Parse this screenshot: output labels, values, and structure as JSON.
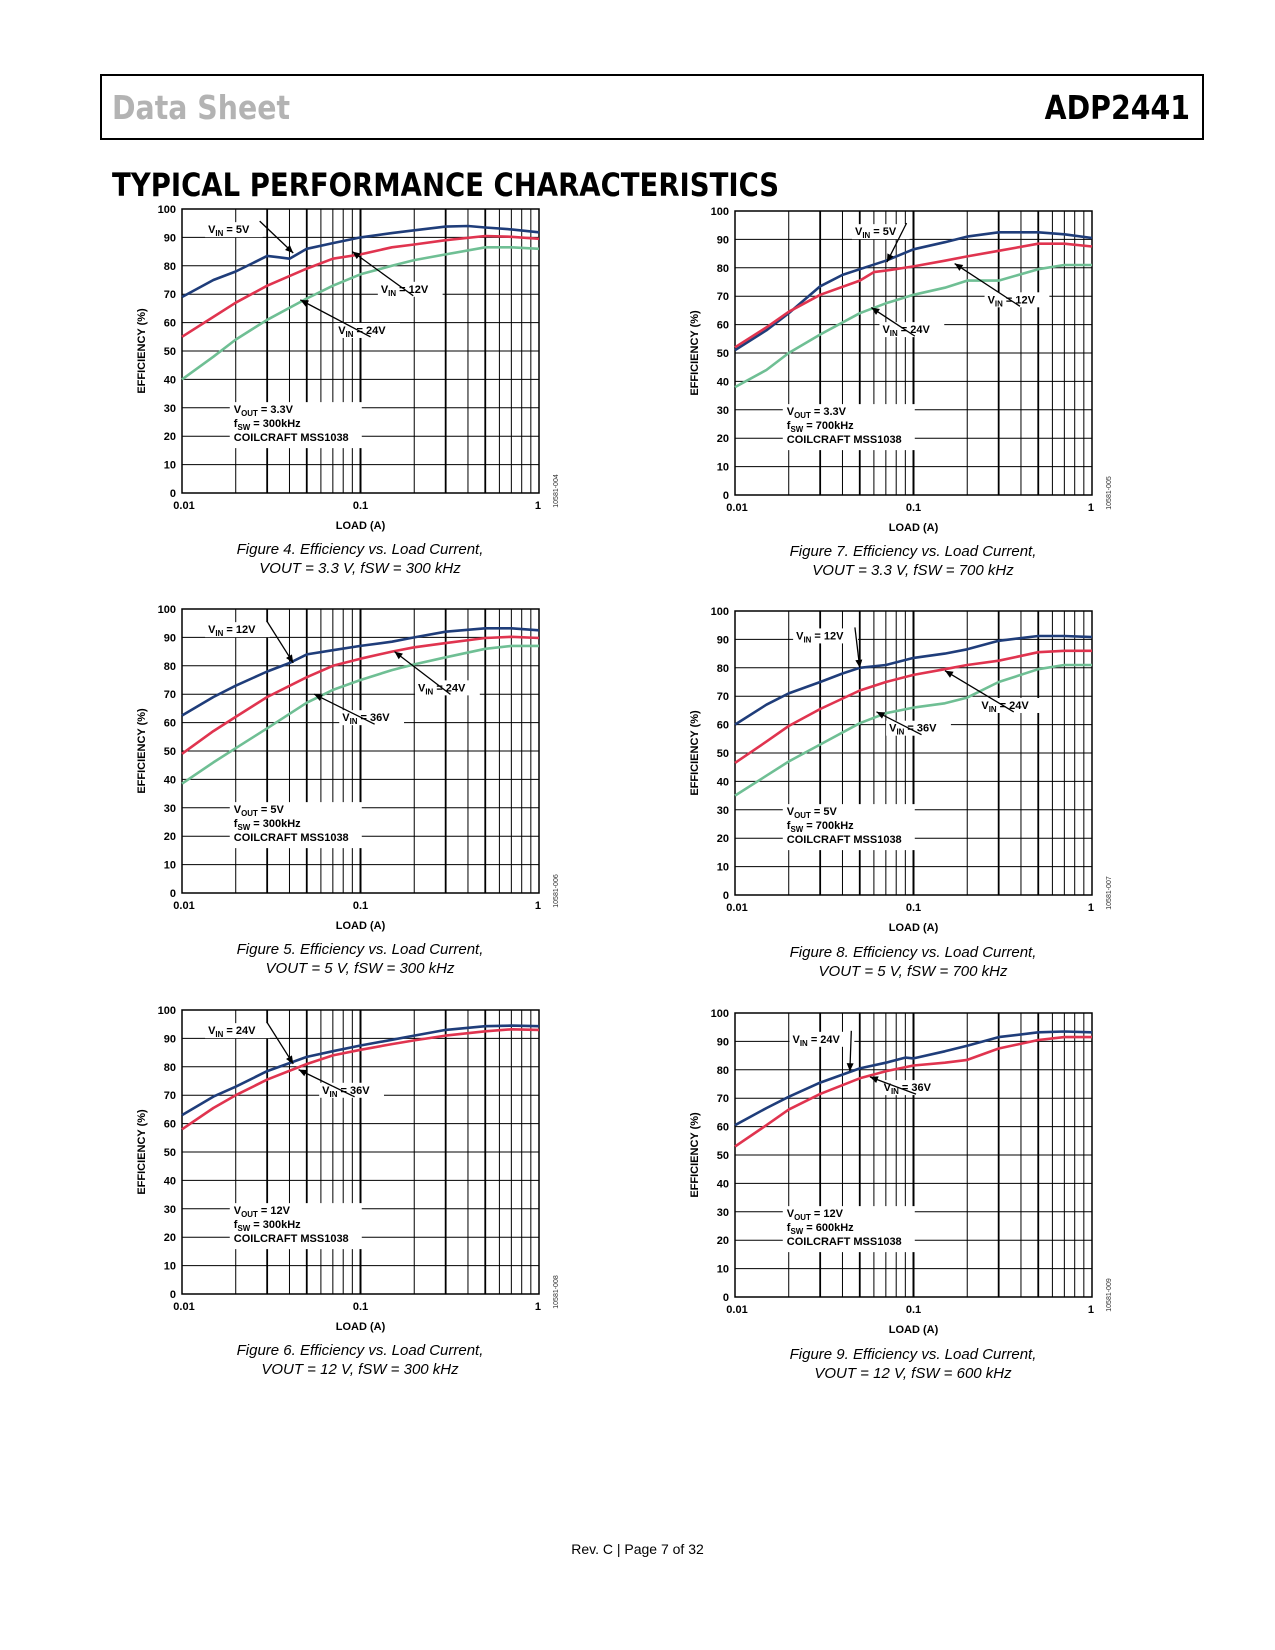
{
  "header": {
    "doc_title": "Data Sheet",
    "part_number": "ADP2441"
  },
  "section_title": "TYPICAL PERFORMANCE CHARACTERISTICS",
  "footer": "Rev. C | Page 7 of 32",
  "colors": {
    "navy": "#1f3d7a",
    "red": "#e0344f",
    "green": "#6fbf94",
    "grid": "#000000"
  },
  "charts": [
    {
      "figure_label": "Figure 4. Efficiency vs. Load Current,",
      "caption_line2": "VOUT = 3.3 V, fSW = 300 kHz",
      "code": "10581-004",
      "conditions": [
        "VOUT = 3.3V",
        "fSW = 300kHz",
        "COILCRAFT MSS1038"
      ],
      "labels": [
        "VIN = 5V",
        "VIN = 12V",
        "VIN = 24V"
      ]
    },
    {
      "figure_label": "Figure 5. Efficiency vs. Load Current,",
      "caption_line2": "VOUT = 5 V, fSW = 300 kHz",
      "code": "10581-006",
      "conditions": [
        "VOUT = 5V",
        "fSW = 300kHz",
        "COILCRAFT MSS1038"
      ],
      "labels": [
        "VIN = 12V",
        "VIN = 24V",
        "VIN = 36V"
      ]
    },
    {
      "figure_label": "Figure 6. Efficiency vs. Load Current,",
      "caption_line2": "VOUT = 12 V, fSW = 300 kHz",
      "code": "10581-008",
      "conditions": [
        "VOUT = 12V",
        "fSW = 300kHz",
        "COILCRAFT MSS1038"
      ],
      "labels": [
        "VIN = 24V",
        "VIN = 36V"
      ]
    },
    {
      "figure_label": "Figure 7. Efficiency vs. Load Current,",
      "caption_line2": "VOUT = 3.3 V, fSW = 700 kHz",
      "code": "10581-005",
      "conditions": [
        "VOUT = 3.3V",
        "fSW = 700kHz",
        "COILCRAFT MSS1038"
      ],
      "labels": [
        "VIN = 5V",
        "VIN = 12V",
        "VIN = 24V"
      ]
    },
    {
      "figure_label": "Figure 8. Efficiency vs. Load Current,",
      "caption_line2": "VOUT = 5 V, fSW = 700 kHz",
      "code": "10581-007",
      "conditions": [
        "VOUT = 5V",
        "fSW = 700kHz",
        "COILCRAFT MSS1038"
      ],
      "labels": [
        "VIN = 12V",
        "VIN = 24V",
        "VIN = 36V"
      ]
    },
    {
      "figure_label": "Figure 9. Efficiency vs. Load Current,",
      "caption_line2": "VOUT = 12 V, fSW = 600 kHz",
      "code": "10581-009",
      "conditions": [
        "VOUT = 12V",
        "fSW = 600kHz",
        "COILCRAFT MSS1038"
      ],
      "labels": [
        "VIN = 24V",
        "VIN = 36V"
      ]
    }
  ],
  "chart_data": [
    {
      "type": "line",
      "xscale": "log",
      "xlim": [
        0.01,
        1
      ],
      "ylim": [
        0,
        100
      ],
      "xlabel": "LOAD (A)",
      "ylabel": "EFFICIENCY (%)",
      "x_ticks": [
        "0.01",
        "0.1",
        "1"
      ],
      "y_ticks": [
        "0",
        "10",
        "20",
        "30",
        "40",
        "50",
        "60",
        "70",
        "80",
        "90",
        "100"
      ],
      "grid": true,
      "series": [
        {
          "name": "VIN = 5V",
          "color": "#1f3d7a",
          "x": [
            0.01,
            0.015,
            0.02,
            0.025,
            0.03,
            0.035,
            0.04,
            0.05,
            0.07,
            0.1,
            0.15,
            0.2,
            0.3,
            0.4,
            0.5,
            0.7,
            1
          ],
          "y": [
            69,
            75,
            78,
            81,
            83.5,
            83,
            82.5,
            86,
            88,
            90,
            91.5,
            92.5,
            93.8,
            94,
            93.5,
            92.8,
            91.8
          ]
        },
        {
          "name": "VIN = 12V",
          "color": "#e0344f",
          "x": [
            0.01,
            0.015,
            0.02,
            0.03,
            0.05,
            0.07,
            0.1,
            0.15,
            0.2,
            0.3,
            0.5,
            0.7,
            1
          ],
          "y": [
            55,
            62,
            67,
            73,
            79,
            82.5,
            84,
            86.5,
            87.5,
            89,
            90.5,
            90.2,
            89.5
          ]
        },
        {
          "name": "VIN = 24V",
          "color": "#6fbf94",
          "x": [
            0.01,
            0.015,
            0.02,
            0.03,
            0.05,
            0.07,
            0.1,
            0.15,
            0.2,
            0.3,
            0.5,
            0.7,
            1
          ],
          "y": [
            40,
            48,
            54,
            61,
            68.5,
            73,
            77,
            80,
            82,
            84,
            86.5,
            86.5,
            86
          ]
        }
      ],
      "annotations": [
        "VIN = 5V",
        "VIN = 12V",
        "VIN = 24V",
        "VOUT = 3.3V",
        "fSW = 300kHz",
        "COILCRAFT MSS1038"
      ]
    },
    {
      "type": "line",
      "xscale": "log",
      "xlim": [
        0.01,
        1
      ],
      "ylim": [
        0,
        100
      ],
      "xlabel": "LOAD (A)",
      "ylabel": "EFFICIENCY (%)",
      "x_ticks": [
        "0.01",
        "0.1",
        "1"
      ],
      "y_ticks": [
        "0",
        "10",
        "20",
        "30",
        "40",
        "50",
        "60",
        "70",
        "80",
        "90",
        "100"
      ],
      "grid": true,
      "series": [
        {
          "name": "VIN = 12V",
          "color": "#1f3d7a",
          "x": [
            0.01,
            0.015,
            0.02,
            0.03,
            0.04,
            0.05,
            0.07,
            0.1,
            0.15,
            0.2,
            0.3,
            0.5,
            0.7,
            1
          ],
          "y": [
            62.5,
            69,
            73,
            78,
            81,
            84,
            85.5,
            87,
            88.5,
            90,
            92,
            93.2,
            93.2,
            92.5
          ]
        },
        {
          "name": "VIN = 24V",
          "color": "#e0344f",
          "x": [
            0.01,
            0.015,
            0.02,
            0.03,
            0.05,
            0.07,
            0.1,
            0.15,
            0.2,
            0.3,
            0.5,
            0.7,
            1
          ],
          "y": [
            49,
            57,
            62,
            69,
            76,
            80,
            82.5,
            85,
            86.5,
            88,
            89.8,
            90.2,
            89.8
          ]
        },
        {
          "name": "VIN = 36V",
          "color": "#6fbf94",
          "x": [
            0.01,
            0.015,
            0.02,
            0.03,
            0.05,
            0.07,
            0.1,
            0.15,
            0.2,
            0.3,
            0.5,
            0.7,
            1
          ],
          "y": [
            38.5,
            46,
            51,
            58,
            67,
            71.5,
            75,
            78.5,
            80.5,
            83,
            86,
            87,
            87
          ]
        }
      ],
      "annotations": [
        "VIN = 12V",
        "VIN = 24V",
        "VIN = 36V",
        "VOUT = 5V",
        "fSW = 300kHz",
        "COILCRAFT MSS1038"
      ]
    },
    {
      "type": "line",
      "xscale": "log",
      "xlim": [
        0.01,
        1
      ],
      "ylim": [
        0,
        100
      ],
      "xlabel": "LOAD (A)",
      "ylabel": "EFFICIENCY (%)",
      "x_ticks": [
        "0.01",
        "0.1",
        "1"
      ],
      "y_ticks": [
        "0",
        "10",
        "20",
        "30",
        "40",
        "50",
        "60",
        "70",
        "80",
        "90",
        "100"
      ],
      "grid": true,
      "series": [
        {
          "name": "VIN = 24V",
          "color": "#1f3d7a",
          "x": [
            0.01,
            0.015,
            0.02,
            0.03,
            0.05,
            0.07,
            0.1,
            0.15,
            0.2,
            0.3,
            0.5,
            0.7,
            1
          ],
          "y": [
            63,
            69.5,
            73,
            78.5,
            83.5,
            85.5,
            87.5,
            89.5,
            91,
            93,
            94.3,
            94.5,
            94.3
          ]
        },
        {
          "name": "VIN = 36V",
          "color": "#e0344f",
          "x": [
            0.01,
            0.015,
            0.02,
            0.03,
            0.05,
            0.07,
            0.1,
            0.15,
            0.2,
            0.3,
            0.5,
            0.7,
            1
          ],
          "y": [
            58,
            65.5,
            70,
            75.5,
            81,
            84,
            86,
            88,
            89.3,
            91,
            92.5,
            93.2,
            93
          ]
        }
      ],
      "annotations": [
        "VIN = 24V",
        "VIN = 36V",
        "VOUT = 12V",
        "fSW = 300kHz",
        "COILCRAFT MSS1038"
      ]
    },
    {
      "type": "line",
      "xscale": "log",
      "xlim": [
        0.01,
        1
      ],
      "ylim": [
        0,
        100
      ],
      "xlabel": "LOAD (A)",
      "ylabel": "EFFICIENCY (%)",
      "x_ticks": [
        "0.01",
        "0.1",
        "1"
      ],
      "y_ticks": [
        "0",
        "10",
        "20",
        "30",
        "40",
        "50",
        "60",
        "70",
        "80",
        "90",
        "100"
      ],
      "grid": true,
      "series": [
        {
          "name": "VIN = 5V",
          "color": "#1f3d7a",
          "x": [
            0.01,
            0.015,
            0.02,
            0.03,
            0.04,
            0.05,
            0.07,
            0.1,
            0.15,
            0.2,
            0.3,
            0.5,
            0.7,
            1
          ],
          "y": [
            51,
            58,
            64,
            73.5,
            77.5,
            79.5,
            82.5,
            86.5,
            89,
            91,
            92.5,
            92.5,
            91.8,
            90.5
          ]
        },
        {
          "name": "VIN = 12V",
          "color": "#e0344f",
          "x": [
            0.01,
            0.015,
            0.02,
            0.03,
            0.05,
            0.06,
            0.07,
            0.1,
            0.15,
            0.2,
            0.3,
            0.5,
            0.7,
            1
          ],
          "y": [
            52,
            59,
            64.5,
            70.5,
            75.5,
            78.5,
            79,
            80.5,
            82.5,
            84,
            86,
            88.5,
            88.5,
            87.5
          ]
        },
        {
          "name": "VIN = 24V",
          "color": "#6fbf94",
          "x": [
            0.01,
            0.015,
            0.02,
            0.03,
            0.05,
            0.07,
            0.1,
            0.15,
            0.2,
            0.3,
            0.5,
            0.7,
            1
          ],
          "y": [
            38,
            44,
            50,
            56.5,
            64,
            67.5,
            70.5,
            73,
            75.5,
            75.5,
            79.5,
            81,
            81
          ]
        }
      ],
      "annotations": [
        "VIN = 5V",
        "VIN = 12V",
        "VIN = 24V",
        "VOUT = 3.3V",
        "fSW = 700kHz",
        "COILCRAFT MSS1038"
      ]
    },
    {
      "type": "line",
      "xscale": "log",
      "xlim": [
        0.01,
        1
      ],
      "ylim": [
        0,
        100
      ],
      "xlabel": "LOAD (A)",
      "ylabel": "EFFICIENCY (%)",
      "x_ticks": [
        "0.01",
        "0.1",
        "1"
      ],
      "y_ticks": [
        "0",
        "10",
        "20",
        "30",
        "40",
        "50",
        "60",
        "70",
        "80",
        "90",
        "100"
      ],
      "grid": true,
      "series": [
        {
          "name": "VIN = 12V",
          "color": "#1f3d7a",
          "x": [
            0.01,
            0.015,
            0.02,
            0.03,
            0.04,
            0.05,
            0.07,
            0.1,
            0.15,
            0.2,
            0.3,
            0.5,
            0.7,
            1
          ],
          "y": [
            60,
            67,
            71,
            75,
            78,
            80,
            81,
            83.5,
            85,
            86.5,
            89.5,
            91.2,
            91.2,
            90.8
          ]
        },
        {
          "name": "VIN = 24V",
          "color": "#e0344f",
          "x": [
            0.01,
            0.015,
            0.02,
            0.03,
            0.05,
            0.07,
            0.1,
            0.15,
            0.2,
            0.3,
            0.5,
            0.7,
            1
          ],
          "y": [
            46.5,
            54,
            59.5,
            65.5,
            72,
            75,
            77.5,
            79.5,
            81,
            82.5,
            85.5,
            86,
            86
          ]
        },
        {
          "name": "VIN = 36V",
          "color": "#6fbf94",
          "x": [
            0.01,
            0.015,
            0.02,
            0.03,
            0.05,
            0.07,
            0.1,
            0.15,
            0.2,
            0.3,
            0.5,
            0.7,
            1
          ],
          "y": [
            35,
            42,
            47,
            53,
            60.5,
            64,
            66,
            67.5,
            69.5,
            75,
            79.5,
            81,
            81
          ]
        }
      ],
      "annotations": [
        "VIN = 12V",
        "VIN = 24V",
        "VIN = 36V",
        "VOUT = 5V",
        "fSW = 700kHz",
        "COILCRAFT MSS1038"
      ]
    },
    {
      "type": "line",
      "xscale": "log",
      "xlim": [
        0.01,
        1
      ],
      "ylim": [
        0,
        100
      ],
      "xlabel": "LOAD (A)",
      "ylabel": "EFFICIENCY (%)",
      "x_ticks": [
        "0.01",
        "0.1",
        "1"
      ],
      "y_ticks": [
        "0",
        "10",
        "20",
        "30",
        "40",
        "50",
        "60",
        "70",
        "80",
        "90",
        "100"
      ],
      "grid": true,
      "series": [
        {
          "name": "VIN = 24V",
          "color": "#1f3d7a",
          "x": [
            0.01,
            0.015,
            0.02,
            0.03,
            0.05,
            0.07,
            0.09,
            0.1,
            0.15,
            0.2,
            0.3,
            0.5,
            0.7,
            1
          ],
          "y": [
            60.5,
            66.5,
            70.5,
            75.5,
            80.5,
            82.5,
            84.3,
            84,
            86.5,
            88.5,
            91.5,
            93.2,
            93.5,
            93.2
          ]
        },
        {
          "name": "VIN = 36V",
          "color": "#e0344f",
          "x": [
            0.01,
            0.015,
            0.02,
            0.03,
            0.05,
            0.07,
            0.1,
            0.15,
            0.2,
            0.3,
            0.5,
            0.7,
            1
          ],
          "y": [
            53,
            60.5,
            66,
            71.5,
            77,
            79.5,
            81.5,
            82.5,
            83.5,
            87.5,
            90.5,
            91.5,
            91.5
          ]
        }
      ],
      "annotations": [
        "VIN = 24V",
        "VIN = 36V",
        "VOUT = 12V",
        "fSW = 600kHz",
        "COILCRAFT MSS1038"
      ]
    }
  ]
}
